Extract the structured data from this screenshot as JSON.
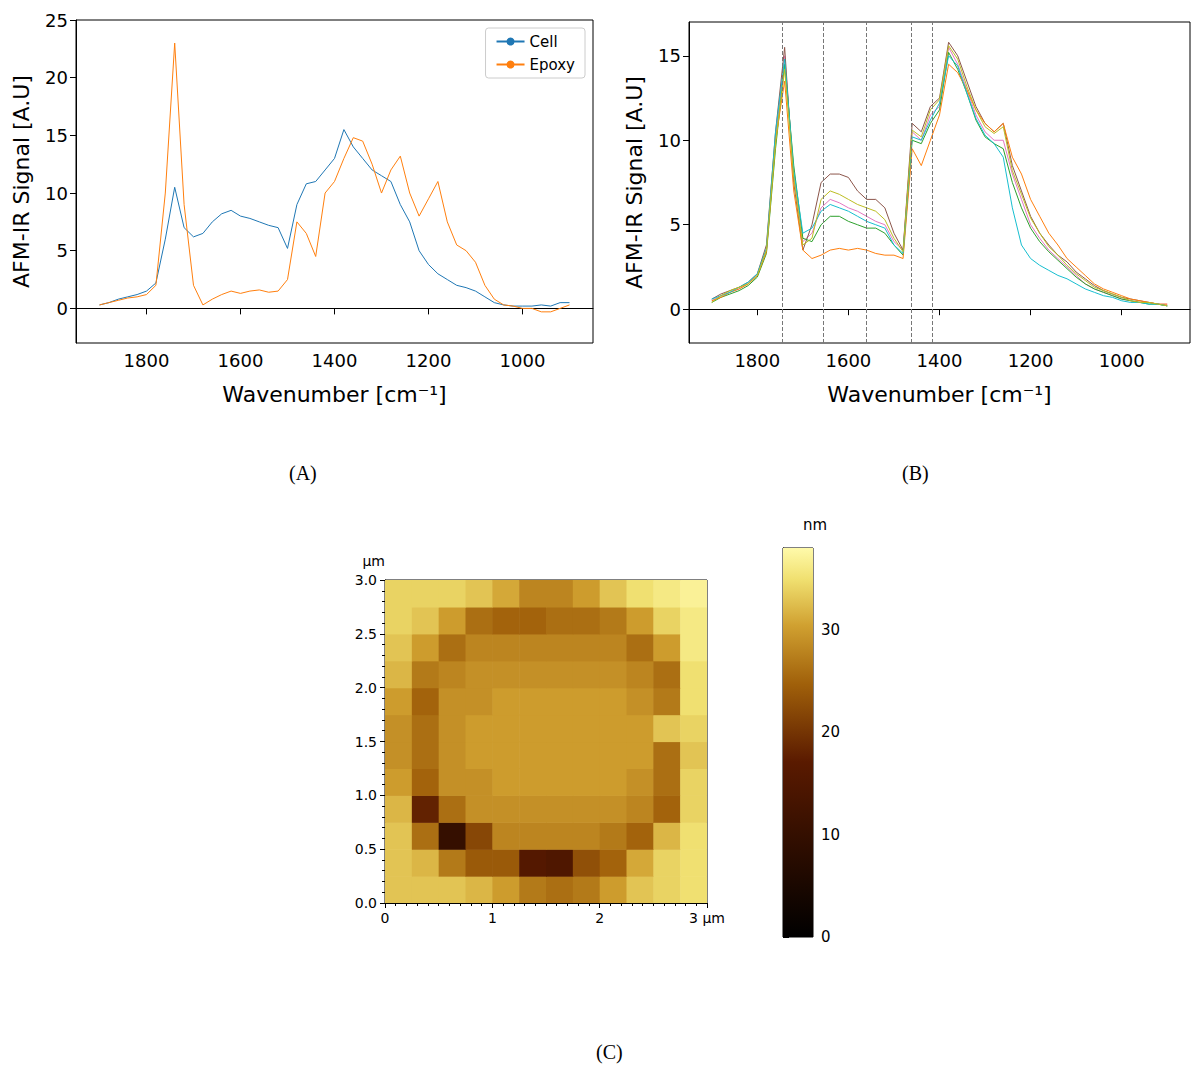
{
  "chart_data": [
    {
      "type": "line",
      "panel_label": "(A)",
      "xlabel": "Wavenumber [cm⁻¹]",
      "ylabel": "AFM-IR Signal [A.U]",
      "xlim": [
        1950,
        850
      ],
      "xticks": [
        1800,
        1600,
        1400,
        1200,
        1000
      ],
      "ylim": [
        -3,
        25
      ],
      "yticks": [
        0,
        5,
        10,
        15,
        20,
        25
      ],
      "grid": false,
      "legend": "upper right",
      "x": [
        1900,
        1880,
        1860,
        1840,
        1820,
        1800,
        1780,
        1760,
        1740,
        1720,
        1700,
        1680,
        1660,
        1640,
        1620,
        1600,
        1580,
        1560,
        1540,
        1520,
        1500,
        1480,
        1460,
        1440,
        1420,
        1400,
        1380,
        1360,
        1340,
        1320,
        1300,
        1280,
        1260,
        1240,
        1220,
        1200,
        1180,
        1160,
        1140,
        1120,
        1100,
        1080,
        1060,
        1040,
        1020,
        1000,
        980,
        960,
        940,
        920,
        900
      ],
      "series": [
        {
          "name": "Cell",
          "color": "#1f77b4",
          "values": [
            0.3,
            0.5,
            0.8,
            1.0,
            1.2,
            1.5,
            2.2,
            6.0,
            10.5,
            7.0,
            6.2,
            6.5,
            7.5,
            8.2,
            8.5,
            8.0,
            7.8,
            7.5,
            7.2,
            7.0,
            5.2,
            9.0,
            10.8,
            11.0,
            12.0,
            13.0,
            15.5,
            14.0,
            13.0,
            12.0,
            11.5,
            11.0,
            9.0,
            7.5,
            5.0,
            3.8,
            3.0,
            2.5,
            2.0,
            1.8,
            1.5,
            1.0,
            0.5,
            0.3,
            0.2,
            0.2,
            0.2,
            0.3,
            0.2,
            0.5,
            0.5
          ]
        },
        {
          "name": "Epoxy",
          "color": "#ff7f0e",
          "values": [
            0.3,
            0.5,
            0.7,
            0.9,
            1.0,
            1.2,
            2.0,
            10.0,
            23.0,
            9.0,
            2.0,
            0.3,
            0.8,
            1.2,
            1.5,
            1.3,
            1.5,
            1.6,
            1.4,
            1.5,
            2.5,
            7.5,
            6.5,
            4.5,
            10.0,
            11.0,
            13.0,
            14.8,
            14.5,
            12.5,
            10.0,
            12.0,
            13.2,
            10.0,
            8.0,
            9.5,
            11.0,
            7.5,
            5.5,
            5.0,
            4.0,
            2.0,
            0.8,
            0.3,
            0.2,
            0.0,
            0.0,
            -0.3,
            -0.3,
            0.0,
            0.3
          ]
        }
      ]
    },
    {
      "type": "line",
      "panel_label": "(B)",
      "xlabel": "Wavenumber [cm⁻¹]",
      "ylabel": "AFM-IR Signal [A.U]",
      "xlim": [
        1950,
        850
      ],
      "xticks": [
        1800,
        1600,
        1400,
        1200,
        1000
      ],
      "ylim": [
        -2,
        17
      ],
      "yticks": [
        0,
        5,
        10,
        15
      ],
      "grid": false,
      "vlines": [
        1745,
        1655,
        1560,
        1462,
        1416
      ],
      "x": [
        1900,
        1880,
        1860,
        1840,
        1820,
        1800,
        1780,
        1760,
        1740,
        1720,
        1700,
        1680,
        1660,
        1640,
        1620,
        1600,
        1580,
        1560,
        1540,
        1520,
        1500,
        1480,
        1460,
        1440,
        1420,
        1400,
        1380,
        1360,
        1340,
        1320,
        1300,
        1280,
        1260,
        1240,
        1220,
        1200,
        1180,
        1160,
        1140,
        1120,
        1100,
        1080,
        1060,
        1040,
        1020,
        1000,
        980,
        960,
        940,
        920,
        900
      ],
      "series": [
        {
          "color": "#e377c2",
          "values": [
            0.5,
            0.8,
            1.0,
            1.2,
            1.5,
            2.0,
            3.5,
            10,
            15,
            8,
            4,
            4.5,
            6,
            6.5,
            6.3,
            6,
            5.8,
            5.5,
            5.2,
            5,
            4,
            3.5,
            10.5,
            10,
            11.5,
            12,
            15.5,
            14.5,
            13,
            11.5,
            10.5,
            10,
            10,
            8,
            6.5,
            5,
            4.2,
            3.5,
            3,
            2.5,
            2,
            1.5,
            1.2,
            1,
            0.8,
            0.6,
            0.5,
            0.4,
            0.4,
            0.3,
            0.3
          ]
        },
        {
          "color": "#8c564b",
          "values": [
            0.6,
            0.9,
            1.1,
            1.3,
            1.6,
            2.1,
            3.8,
            10.5,
            15.5,
            7.5,
            3.5,
            5,
            7.5,
            8,
            8,
            7.8,
            7,
            6.5,
            6.5,
            6,
            4.5,
            3.5,
            11,
            10.5,
            12,
            12.5,
            15.8,
            15,
            13.5,
            12,
            11,
            10.5,
            11,
            8.5,
            7,
            5.5,
            4.5,
            3.8,
            3.2,
            2.8,
            2.2,
            1.8,
            1.4,
            1.1,
            0.9,
            0.7,
            0.6,
            0.5,
            0.4,
            0.3,
            0.2
          ]
        },
        {
          "color": "#2ca02c",
          "values": [
            0.4,
            0.7,
            0.9,
            1.1,
            1.4,
            1.9,
            3.3,
            9.5,
            14.5,
            8.5,
            4.2,
            4,
            5,
            5.5,
            5.5,
            5.2,
            5,
            4.8,
            4.8,
            4.5,
            3.8,
            3.2,
            10,
            9.8,
            11,
            11.8,
            15.2,
            14.2,
            12.8,
            11.2,
            10.2,
            9.8,
            9.5,
            7.5,
            6,
            4.8,
            4,
            3.4,
            2.9,
            2.4,
            1.9,
            1.5,
            1.2,
            1,
            0.8,
            0.6,
            0.5,
            0.4,
            0.3,
            0.3,
            0.2
          ]
        },
        {
          "color": "#ff7f0e",
          "values": [
            0.5,
            0.7,
            1.0,
            1.2,
            1.5,
            2.0,
            3.4,
            10,
            13.5,
            7,
            3.5,
            3,
            3.2,
            3.5,
            3.6,
            3.5,
            3.6,
            3.5,
            3.3,
            3.2,
            3.2,
            3,
            9.5,
            8.5,
            10,
            11.5,
            14.5,
            14,
            13,
            11.8,
            11,
            10.5,
            11,
            9,
            8,
            6.5,
            5.5,
            4.5,
            3.8,
            3,
            2.5,
            2,
            1.5,
            1.2,
            1,
            0.8,
            0.6,
            0.5,
            0.4,
            0.3,
            0.3
          ]
        },
        {
          "color": "#17becf",
          "values": [
            0.6,
            0.8,
            1.0,
            1.3,
            1.6,
            2.1,
            3.6,
            10.5,
            14.8,
            8.2,
            4.5,
            4.8,
            5.8,
            6.2,
            6,
            5.8,
            5.5,
            5.2,
            5,
            4.8,
            3.8,
            3.3,
            10.2,
            10,
            11.2,
            12.2,
            15,
            14.4,
            12.8,
            11.3,
            10.3,
            9.8,
            9,
            6,
            3.8,
            3,
            2.6,
            2.3,
            2,
            1.8,
            1.5,
            1.2,
            1,
            0.8,
            0.7,
            0.5,
            0.4,
            0.4,
            0.3,
            0.3,
            0.2
          ]
        },
        {
          "color": "#bcbd22",
          "values": [
            0.4,
            0.8,
            1.1,
            1.3,
            1.5,
            2.0,
            3.5,
            9.8,
            14.2,
            7.8,
            3.8,
            4.2,
            6.5,
            7,
            6.8,
            6.5,
            6.2,
            6,
            5.8,
            5.3,
            4.2,
            3.4,
            10.6,
            10.2,
            11.8,
            12.4,
            15.6,
            14.8,
            13.2,
            11.8,
            10.8,
            10.4,
            10.8,
            8.2,
            6.8,
            5.4,
            4.5,
            3.7,
            3.2,
            2.6,
            2.1,
            1.7,
            1.3,
            1.1,
            0.9,
            0.7,
            0.5,
            0.4,
            0.4,
            0.3,
            0.2
          ]
        }
      ]
    },
    {
      "type": "heatmap",
      "panel_label": "(C)",
      "ylabel": "µm",
      "xlim": [
        0,
        3
      ],
      "xticks": [
        0,
        1,
        2,
        {
          "value": 3,
          "label": "3 µm"
        }
      ],
      "ylim": [
        0,
        3
      ],
      "yticks": [
        {
          "value": 0,
          "label": "0.0"
        },
        {
          "value": 0.5,
          "label": "0.5"
        },
        {
          "value": 1,
          "label": "1.0"
        },
        {
          "value": 1.5,
          "label": "1.5"
        },
        {
          "value": 2,
          "label": "2.0"
        },
        {
          "value": 2.5,
          "label": "2.5"
        },
        {
          "value": 3,
          "label": "3.0"
        }
      ],
      "x": [
        0.125,
        0.375,
        0.625,
        0.875,
        1.125,
        1.375,
        1.625,
        1.875,
        2.125,
        2.375,
        2.625,
        2.875
      ],
      "y": [
        0.125,
        0.375,
        0.625,
        0.875,
        1.125,
        1.375,
        1.625,
        1.875,
        2.125,
        2.375,
        2.625,
        2.875
      ],
      "values": [
        [
          33,
          33,
          33,
          32,
          30,
          27,
          26,
          27,
          30,
          33,
          34,
          35
        ],
        [
          33,
          32,
          27,
          24,
          24,
          16,
          15,
          23,
          25,
          31,
          34,
          35
        ],
        [
          33,
          26,
          10,
          22,
          28,
          28,
          28,
          28,
          27,
          25,
          32,
          35
        ],
        [
          32,
          18,
          26,
          29,
          29,
          29,
          29,
          29,
          29,
          28,
          25,
          34
        ],
        [
          30,
          25,
          29,
          29,
          30,
          30,
          30,
          30,
          30,
          29,
          26,
          34
        ],
        [
          29,
          26,
          29,
          30,
          30,
          30,
          30,
          30,
          30,
          30,
          26,
          33
        ],
        [
          29,
          26,
          29,
          30,
          30,
          30,
          30,
          30,
          30,
          30,
          33,
          34
        ],
        [
          30,
          25,
          29,
          29,
          30,
          30,
          30,
          30,
          30,
          29,
          27,
          35
        ],
        [
          32,
          27,
          28,
          29,
          29,
          29,
          29,
          29,
          29,
          28,
          26,
          35
        ],
        [
          33,
          30,
          26,
          28,
          28,
          28,
          28,
          28,
          28,
          26,
          30,
          36
        ],
        [
          34,
          33,
          30,
          26,
          25,
          25,
          26,
          26,
          27,
          30,
          34,
          36
        ],
        [
          34,
          34,
          34,
          33,
          31,
          28,
          28,
          30,
          33,
          35,
          36,
          37
        ]
      ],
      "colorbar": {
        "label": "nm",
        "range": [
          0,
          38
        ],
        "ticks": [
          0,
          10,
          20,
          30
        ]
      }
    }
  ]
}
